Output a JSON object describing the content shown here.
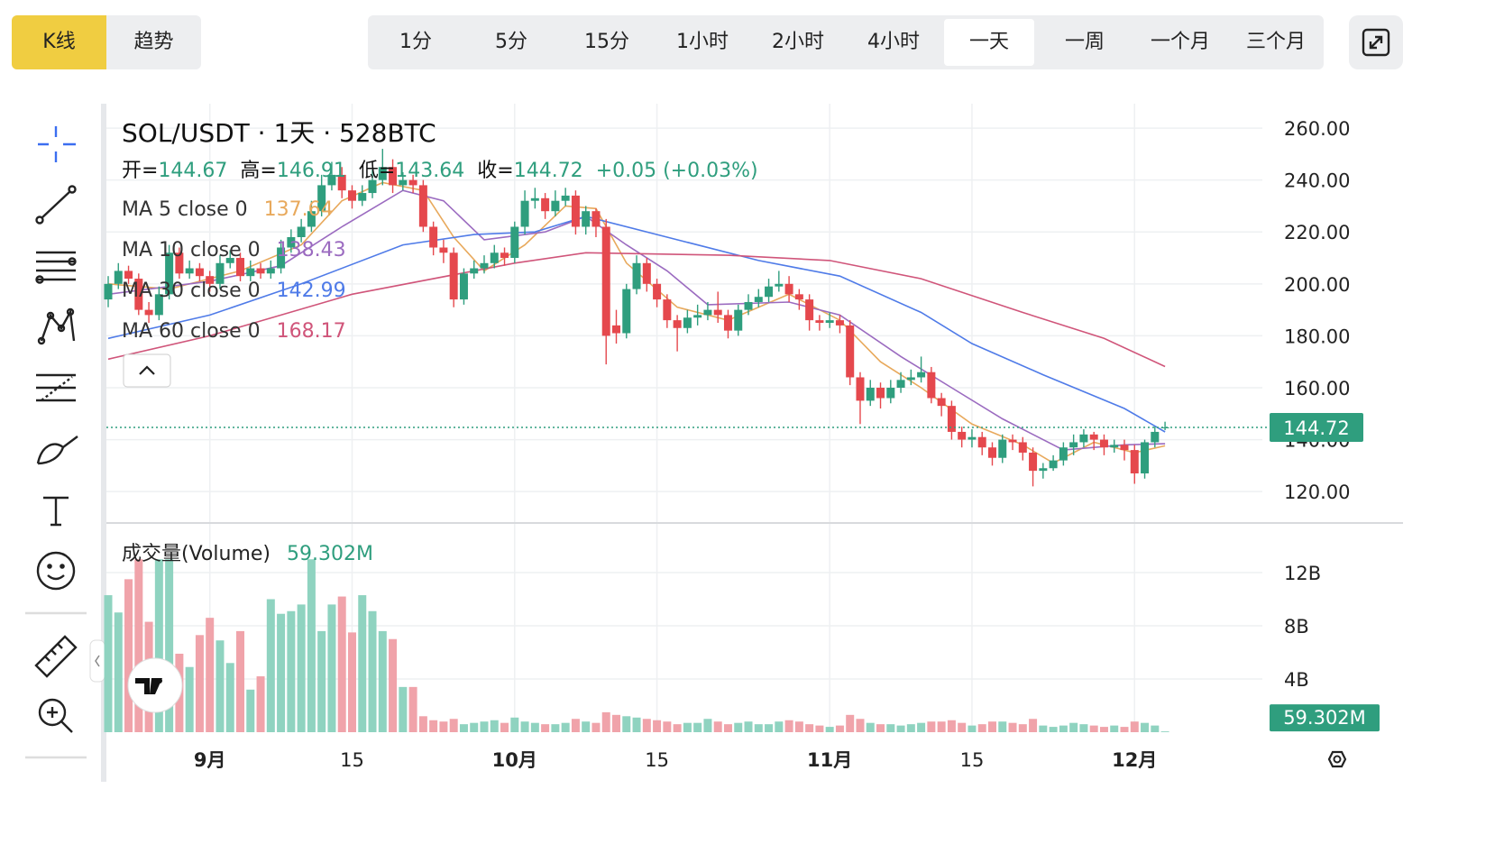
{
  "toolbar": {
    "modes": [
      "K线",
      "趋势"
    ],
    "active_mode": 0,
    "intervals": [
      "1分",
      "5分",
      "15分",
      "1小时",
      "2小时",
      "4小时",
      "一天",
      "一周",
      "一个月",
      "三个月"
    ],
    "active_interval": 6
  },
  "chart_data": {
    "type": "candlestick",
    "title": "SOL/USDT · 1天 · 528BTC",
    "ohlc_labels": [
      "开=",
      "高=",
      "低=",
      "收="
    ],
    "change_label": "+0.05 (+0.03%)",
    "categories": [
      "08-22",
      "08-23",
      "08-24",
      "08-25",
      "08-26",
      "08-27",
      "08-28",
      "08-29",
      "08-30",
      "08-31",
      "09-01",
      "09-02",
      "09-03",
      "09-04",
      "09-05",
      "09-06",
      "09-07",
      "09-08",
      "09-09",
      "09-10",
      "09-11",
      "09-12",
      "09-13",
      "09-14",
      "09-15",
      "09-16",
      "09-17",
      "09-18",
      "09-19",
      "09-20",
      "09-21",
      "09-22",
      "09-23",
      "09-24",
      "09-25",
      "09-26",
      "09-27",
      "09-28",
      "09-29",
      "09-30",
      "10-01",
      "10-02",
      "10-03",
      "10-04",
      "10-05",
      "10-06",
      "10-07",
      "10-08",
      "10-09",
      "10-10",
      "10-11",
      "10-12",
      "10-13",
      "10-14",
      "10-15",
      "10-16",
      "10-17",
      "10-18",
      "10-19",
      "10-20",
      "10-21",
      "10-22",
      "10-23",
      "10-24",
      "10-25",
      "10-26",
      "10-27",
      "10-28",
      "10-29",
      "10-30",
      "10-31",
      "11-01",
      "11-02",
      "11-03",
      "11-04",
      "11-05",
      "11-06",
      "11-07",
      "11-08",
      "11-09",
      "11-10",
      "11-11",
      "11-12",
      "11-13",
      "11-14",
      "11-15",
      "11-16",
      "11-17",
      "11-18",
      "11-19",
      "11-20",
      "11-21",
      "11-22",
      "11-23",
      "11-24",
      "11-25",
      "11-26",
      "11-27",
      "11-28",
      "11-29",
      "11-30",
      "12-01",
      "12-02",
      "12-03",
      "12-04"
    ],
    "open": [
      194,
      200,
      205,
      202,
      190,
      188,
      196,
      212,
      204,
      206,
      203,
      200,
      208,
      210,
      203,
      206,
      204,
      206,
      214,
      218,
      222,
      228,
      238,
      242,
      236,
      232,
      235,
      240,
      245,
      238,
      240,
      238,
      222,
      214,
      212,
      194,
      204,
      206,
      208,
      212,
      210,
      222,
      232,
      233,
      228,
      232,
      234,
      222,
      228,
      222,
      184,
      181,
      198,
      208,
      200,
      194,
      186,
      183,
      187,
      188,
      190,
      188,
      182,
      190,
      193,
      195,
      199,
      200,
      196,
      194,
      186,
      185,
      186,
      184,
      164,
      155,
      160,
      156,
      160,
      163,
      164,
      166,
      156,
      153,
      143,
      140,
      141,
      137,
      133,
      140,
      139,
      135,
      128,
      129,
      132,
      137,
      139,
      142,
      140,
      137,
      138,
      136,
      127,
      139,
      144.67
    ],
    "high": [
      203,
      208,
      207,
      204,
      193,
      199,
      215,
      214,
      209,
      208,
      205,
      211,
      213,
      212,
      209,
      208,
      209,
      217,
      221,
      225,
      232,
      242,
      247,
      245,
      238,
      238,
      244,
      252,
      248,
      243,
      242,
      240,
      224,
      217,
      214,
      206,
      209,
      211,
      215,
      214,
      224,
      236,
      237,
      235,
      236,
      237,
      236,
      230,
      229,
      225,
      190,
      200,
      211,
      210,
      202,
      196,
      188,
      190,
      192,
      193,
      197,
      190,
      192,
      196,
      198,
      202,
      205,
      203,
      198,
      196,
      188,
      189,
      188,
      186,
      166,
      163,
      162,
      163,
      166,
      167,
      172,
      168,
      158,
      155,
      145,
      144,
      143,
      139,
      142,
      142,
      141,
      137,
      131,
      134,
      139,
      142,
      144,
      143,
      142,
      140,
      140,
      138,
      140,
      145,
      146.91
    ],
    "low": [
      191,
      198,
      200,
      188,
      185,
      186,
      194,
      202,
      202,
      201,
      197,
      198,
      206,
      201,
      201,
      202,
      202,
      204,
      212,
      216,
      220,
      226,
      236,
      233,
      229,
      230,
      233,
      238,
      235,
      236,
      235,
      220,
      211,
      208,
      191,
      192,
      202,
      204,
      206,
      207,
      208,
      219,
      229,
      225,
      226,
      230,
      219,
      219,
      218,
      169,
      177,
      179,
      196,
      197,
      191,
      183,
      174,
      181,
      184,
      186,
      185,
      179,
      180,
      188,
      191,
      193,
      197,
      193,
      190,
      182,
      182,
      183,
      181,
      161,
      146,
      153,
      152,
      154,
      158,
      161,
      162,
      154,
      149,
      140,
      137,
      137,
      134,
      130,
      131,
      136,
      132,
      122,
      125,
      128,
      130,
      134,
      137,
      136,
      134,
      135,
      132,
      123,
      125,
      137,
      143.64
    ],
    "close": [
      200,
      205,
      202,
      190,
      188,
      196,
      212,
      204,
      206,
      203,
      200,
      208,
      210,
      203,
      206,
      204,
      206,
      214,
      218,
      222,
      228,
      238,
      242,
      236,
      232,
      235,
      240,
      245,
      238,
      240,
      238,
      222,
      214,
      212,
      194,
      204,
      206,
      208,
      212,
      210,
      222,
      232,
      233,
      228,
      232,
      234,
      222,
      228,
      222,
      180,
      181,
      198,
      208,
      200,
      194,
      186,
      183,
      187,
      188,
      190,
      188,
      182,
      190,
      193,
      195,
      199,
      200,
      196,
      194,
      186,
      185,
      186,
      184,
      164,
      155,
      160,
      156,
      160,
      163,
      164,
      166,
      156,
      153,
      143,
      140,
      141,
      137,
      133,
      140,
      139,
      135,
      128,
      129,
      132,
      137,
      139,
      142,
      140,
      137,
      138,
      136,
      127,
      139,
      143,
      144.72
    ],
    "up_color": "#2f9e7e",
    "down_color": "#e5484d",
    "ylim": [
      107.9,
      269.4
    ],
    "yticks": [
      {
        "value": 120,
        "label": "120.00"
      },
      {
        "value": 140,
        "label": "140.00"
      },
      {
        "value": 160,
        "label": "160.00"
      },
      {
        "value": 180,
        "label": "180.00"
      },
      {
        "value": 200,
        "label": "200.00"
      },
      {
        "value": 220,
        "label": "220.00"
      },
      {
        "value": 240,
        "label": "240.00"
      },
      {
        "value": 260,
        "label": "260.00"
      }
    ],
    "xticks": [
      {
        "value": "09-01",
        "label": "9月"
      },
      {
        "value": "09-15",
        "label": "15"
      },
      {
        "value": "10-01",
        "label": "10月"
      },
      {
        "value": "10-15",
        "label": "15"
      },
      {
        "value": "11-01",
        "label": "11月"
      },
      {
        "value": "11-15",
        "label": "15"
      },
      {
        "value": "12-01",
        "label": "12月"
      }
    ],
    "grid": true,
    "moving_averages": [
      {
        "name": "MA 5 close 0",
        "color": "#e8a95c",
        "x": [
          "08-22",
          "08-28",
          "09-04",
          "09-10",
          "09-14",
          "09-18",
          "09-22",
          "09-25",
          "09-28",
          "10-02",
          "10-06",
          "10-09",
          "10-12",
          "10-17",
          "10-22",
          "10-28",
          "11-02",
          "11-06",
          "11-10",
          "11-15",
          "11-20",
          "11-23",
          "11-27",
          "12-01",
          "12-04"
        ],
        "values": [
          200,
          198,
          205,
          215,
          232,
          239,
          236,
          218,
          205,
          215,
          230,
          229,
          208,
          191,
          186,
          196,
          186,
          170,
          160,
          146,
          138,
          131,
          139,
          135,
          137.64
        ]
      },
      {
        "name": "MA 10 close 0",
        "color": "#9b6bc0",
        "x": [
          "08-22",
          "09-01",
          "09-08",
          "09-14",
          "09-20",
          "09-24",
          "09-28",
          "10-04",
          "10-08",
          "10-12",
          "10-16",
          "10-20",
          "10-28",
          "11-02",
          "11-08",
          "11-13",
          "11-18",
          "11-24",
          "11-30",
          "12-04"
        ],
        "values": [
          196,
          201,
          207,
          222,
          236,
          232,
          217,
          220,
          226,
          215,
          205,
          192,
          193,
          188,
          172,
          160,
          148,
          136,
          138,
          138.43
        ]
      },
      {
        "name": "MA 30 close 0",
        "color": "#4f7be8",
        "x": [
          "08-22",
          "09-01",
          "09-10",
          "09-20",
          "09-27",
          "10-03",
          "10-08",
          "10-15",
          "10-25",
          "11-02",
          "11-10",
          "11-15",
          "11-22",
          "11-30",
          "12-04"
        ],
        "values": [
          179,
          188,
          200,
          215,
          219,
          220,
          226,
          219,
          209,
          203,
          189,
          177,
          165,
          152,
          142.99
        ]
      },
      {
        "name": "MA 60 close 0",
        "color": "#d0557a",
        "x": [
          "08-22",
          "09-01",
          "09-15",
          "10-01",
          "10-08",
          "10-22",
          "11-01",
          "11-10",
          "11-20",
          "11-28",
          "12-04"
        ],
        "values": [
          171,
          180,
          196,
          208,
          212,
          211,
          209,
          202,
          189,
          179,
          168.17
        ]
      }
    ],
    "volume": {
      "title": "成交量(Volume)",
      "up_color": "#8fd3c0",
      "down_color": "#f0a3aa",
      "label_color": "#2f9e7e",
      "values": [
        10.3,
        9.0,
        11.5,
        13.0,
        8.3,
        13.0,
        13.0,
        5.9,
        4.9,
        7.3,
        8.6,
        6.9,
        5.2,
        7.6,
        3.2,
        4.2,
        10.0,
        8.9,
        9.1,
        9.6,
        13.0,
        7.6,
        9.6,
        10.2,
        7.5,
        10.3,
        9.1,
        7.6,
        7.0,
        3.4,
        3.4,
        1.2,
        0.9,
        0.8,
        1.0,
        0.6,
        0.7,
        0.8,
        0.9,
        0.7,
        1.1,
        0.8,
        0.7,
        0.6,
        0.6,
        0.7,
        1.0,
        0.8,
        0.7,
        1.5,
        1.3,
        1.2,
        1.1,
        1.0,
        0.9,
        0.8,
        0.6,
        0.7,
        0.7,
        1.0,
        0.8,
        0.6,
        0.7,
        0.8,
        0.6,
        0.6,
        0.8,
        0.9,
        0.8,
        0.6,
        0.5,
        0.4,
        0.5,
        1.3,
        1.0,
        0.7,
        0.6,
        0.6,
        0.5,
        0.6,
        0.7,
        0.8,
        0.8,
        0.9,
        0.7,
        0.5,
        0.6,
        0.8,
        0.8,
        0.7,
        0.6,
        1.0,
        0.5,
        0.4,
        0.5,
        0.7,
        0.6,
        0.5,
        0.4,
        0.5,
        0.4,
        0.8,
        0.7,
        0.5,
        0.059302
      ],
      "current_label": "59.302M",
      "ylim": [
        0,
        15.05
      ],
      "yticks": [
        {
          "value": 4,
          "label": "4B"
        },
        {
          "value": 8,
          "label": "8B"
        },
        {
          "value": 12,
          "label": "12B"
        }
      ]
    }
  }
}
